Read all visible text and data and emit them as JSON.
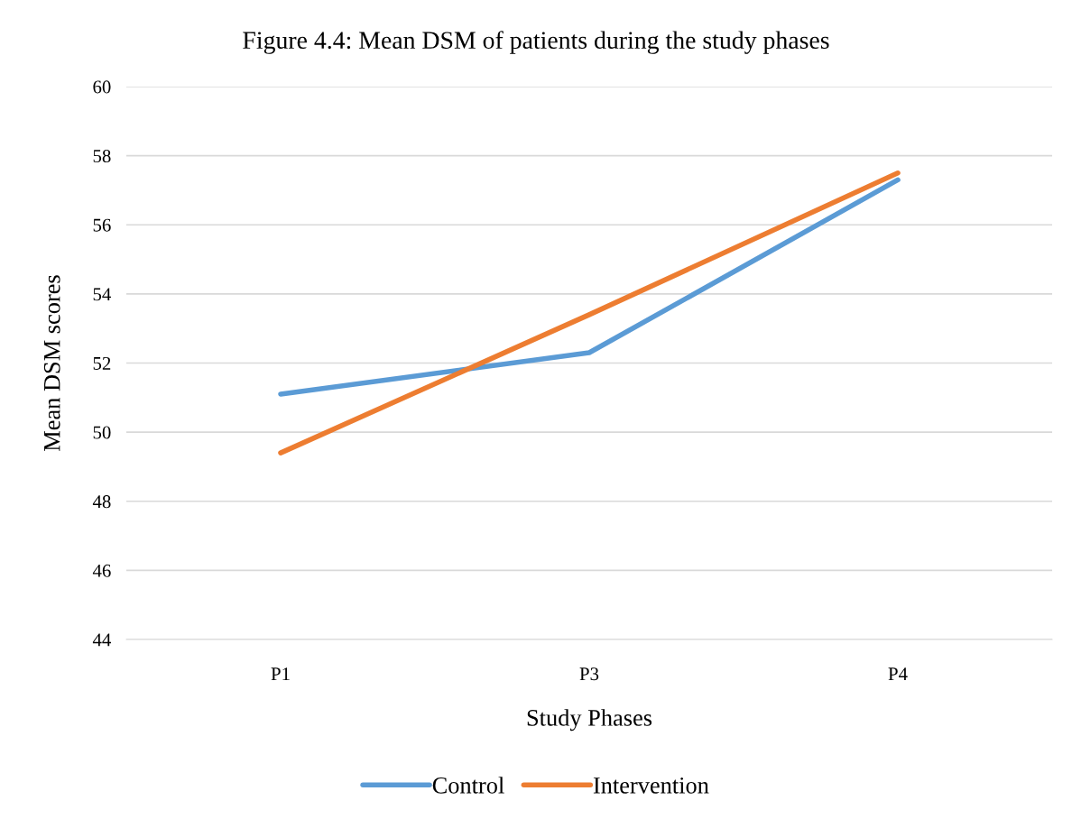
{
  "chart_data": {
    "type": "line",
    "title": "Figure 4.4: Mean DSM of patients during the study phases",
    "xlabel": "Study Phases",
    "ylabel": "Mean DSM scores",
    "categories": [
      "P1",
      "P3",
      "P4"
    ],
    "series": [
      {
        "name": "Control",
        "color": "#5b9bd5",
        "values": [
          51.1,
          52.3,
          57.3
        ]
      },
      {
        "name": "Intervention",
        "color": "#ed7d31",
        "values": [
          49.4,
          53.4,
          57.5
        ]
      }
    ],
    "ylim": [
      44,
      60
    ],
    "yticks": [
      44,
      46,
      48,
      50,
      52,
      54,
      56,
      58,
      60
    ],
    "grid": "y",
    "legend": "bottom",
    "marker": "none",
    "line_style": "solid"
  }
}
